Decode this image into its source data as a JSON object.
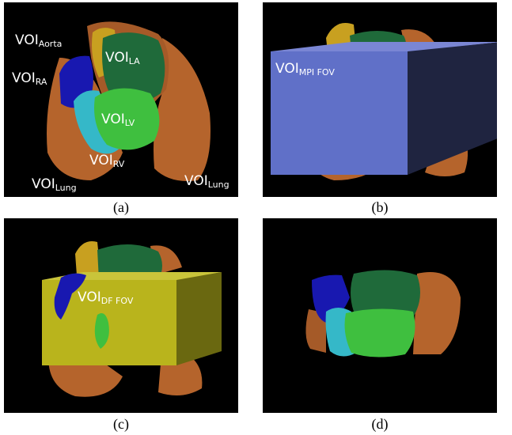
{
  "panels": {
    "a": {
      "caption": "(a)",
      "labels": {
        "aorta": {
          "main": "VOI",
          "sub": "Aorta"
        },
        "la": {
          "main": "VOI",
          "sub": "LA"
        },
        "ra": {
          "main": "VOI",
          "sub": "RA"
        },
        "lv": {
          "main": "VOI",
          "sub": "LV"
        },
        "rv": {
          "main": "VOI",
          "sub": "RV"
        },
        "lung_left": {
          "main": "VOI",
          "sub": "Lung"
        },
        "lung_right": {
          "main": "VOI",
          "sub": "Lung"
        }
      }
    },
    "b": {
      "caption": "(b)",
      "labels": {
        "mpi_fov": {
          "main": "VOI",
          "sub": "MPI FOV"
        }
      }
    },
    "c": {
      "caption": "(c)",
      "labels": {
        "df_fov": {
          "main": "VOI",
          "sub": "DF FOV"
        }
      }
    },
    "d": {
      "caption": "(d)"
    }
  },
  "colors": {
    "lung": "#b5642c",
    "la": "#1f6a3a",
    "lv": "#3fbf3f",
    "rv": "#35b8c8",
    "ra": "#1818b0",
    "aorta": "#c8a020",
    "mpi_fov_box": "#6070c8",
    "df_fov_box": "#b9b41c"
  }
}
